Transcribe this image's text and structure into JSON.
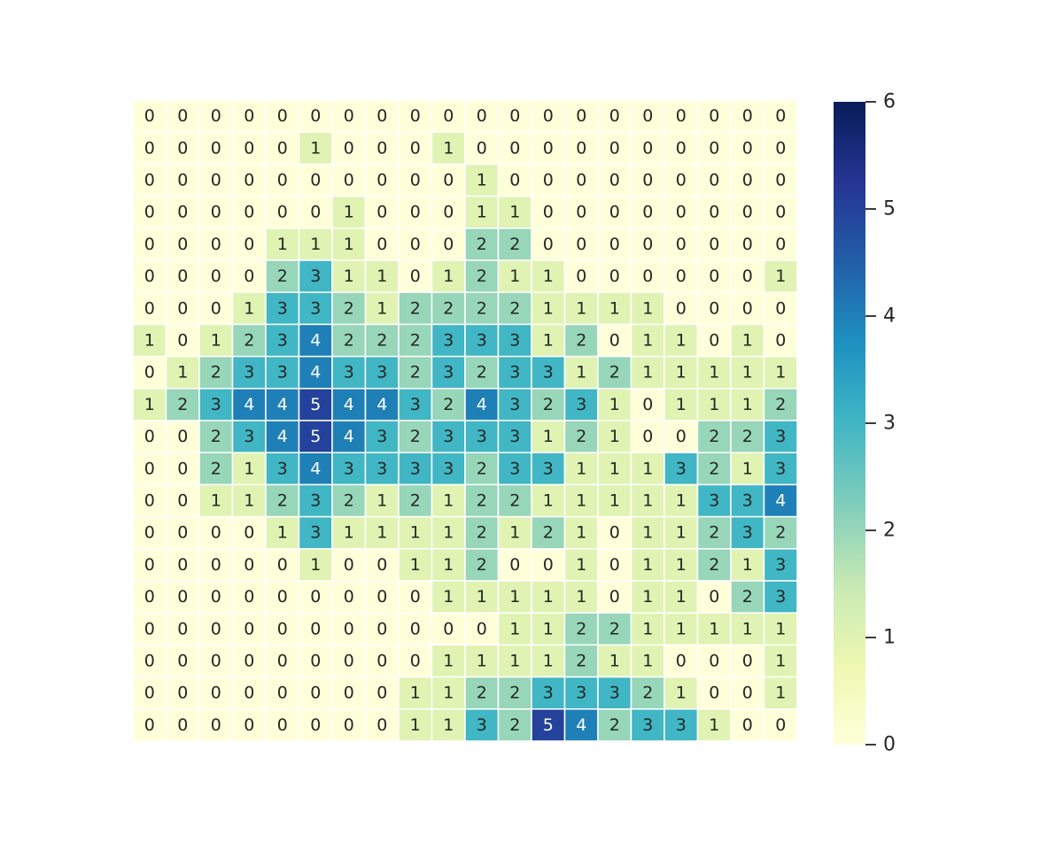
{
  "chart_data": {
    "type": "heatmap",
    "title": "",
    "xlabel": "",
    "ylabel": "",
    "colormap": "YlGnBu",
    "annotations": true,
    "grid": false,
    "legend": "colorbar-right",
    "vmin": 0,
    "vmax": 6,
    "colorbar_ticks": [
      0,
      1,
      2,
      3,
      4,
      5,
      6
    ],
    "colorbar_tick_labels": [
      "0",
      "1",
      "2",
      "3",
      "4",
      "5",
      "6"
    ],
    "matrix": [
      [
        0,
        0,
        0,
        0,
        0,
        0,
        0,
        0,
        0,
        0,
        0,
        0,
        0,
        0,
        0,
        0,
        0,
        0,
        0,
        0
      ],
      [
        0,
        0,
        0,
        0,
        0,
        1,
        0,
        0,
        0,
        1,
        0,
        0,
        0,
        0,
        0,
        0,
        0,
        0,
        0,
        0
      ],
      [
        0,
        0,
        0,
        0,
        0,
        0,
        0,
        0,
        0,
        0,
        1,
        0,
        0,
        0,
        0,
        0,
        0,
        0,
        0,
        0
      ],
      [
        0,
        0,
        0,
        0,
        0,
        0,
        1,
        0,
        0,
        0,
        1,
        1,
        0,
        0,
        0,
        0,
        0,
        0,
        0,
        0
      ],
      [
        0,
        0,
        0,
        0,
        1,
        1,
        1,
        0,
        0,
        0,
        2,
        2,
        0,
        0,
        0,
        0,
        0,
        0,
        0,
        0
      ],
      [
        0,
        0,
        0,
        0,
        2,
        3,
        1,
        1,
        0,
        1,
        2,
        1,
        1,
        0,
        0,
        0,
        0,
        0,
        0,
        1
      ],
      [
        0,
        0,
        0,
        1,
        3,
        3,
        2,
        1,
        2,
        2,
        2,
        2,
        1,
        1,
        1,
        1,
        0,
        0,
        0,
        0
      ],
      [
        1,
        0,
        1,
        2,
        3,
        4,
        2,
        2,
        2,
        3,
        3,
        3,
        1,
        2,
        0,
        1,
        1,
        0,
        1,
        0
      ],
      [
        0,
        1,
        2,
        3,
        3,
        4,
        3,
        3,
        2,
        3,
        2,
        3,
        3,
        1,
        2,
        1,
        1,
        1,
        1,
        1
      ],
      [
        1,
        2,
        3,
        4,
        4,
        5,
        4,
        4,
        3,
        2,
        4,
        3,
        2,
        3,
        1,
        0,
        1,
        1,
        1,
        2
      ],
      [
        0,
        0,
        2,
        3,
        4,
        5,
        4,
        3,
        2,
        3,
        3,
        3,
        1,
        2,
        1,
        0,
        0,
        2,
        2,
        3
      ],
      [
        0,
        0,
        2,
        1,
        3,
        4,
        3,
        3,
        3,
        3,
        2,
        3,
        3,
        1,
        1,
        1,
        3,
        2,
        1,
        3
      ],
      [
        0,
        0,
        1,
        1,
        2,
        3,
        2,
        1,
        2,
        1,
        2,
        2,
        1,
        1,
        1,
        1,
        1,
        3,
        3,
        4
      ],
      [
        0,
        0,
        0,
        0,
        1,
        3,
        1,
        1,
        1,
        1,
        2,
        1,
        2,
        1,
        0,
        1,
        1,
        2,
        3,
        2
      ],
      [
        0,
        0,
        0,
        0,
        0,
        1,
        0,
        0,
        1,
        1,
        2,
        0,
        0,
        1,
        0,
        1,
        1,
        2,
        1,
        3
      ],
      [
        0,
        0,
        0,
        0,
        0,
        0,
        0,
        0,
        0,
        1,
        1,
        1,
        1,
        1,
        0,
        1,
        1,
        0,
        2,
        3
      ],
      [
        0,
        0,
        0,
        0,
        0,
        0,
        0,
        0,
        0,
        0,
        0,
        1,
        1,
        2,
        2,
        1,
        1,
        1,
        1,
        1
      ],
      [
        0,
        0,
        0,
        0,
        0,
        0,
        0,
        0,
        0,
        1,
        1,
        1,
        1,
        2,
        1,
        1,
        0,
        0,
        0,
        1
      ],
      [
        0,
        0,
        0,
        0,
        0,
        0,
        0,
        0,
        1,
        1,
        2,
        2,
        3,
        3,
        3,
        2,
        1,
        0,
        0,
        1
      ],
      [
        0,
        0,
        0,
        0,
        0,
        0,
        0,
        0,
        1,
        1,
        3,
        2,
        5,
        4,
        2,
        3,
        3,
        1,
        0,
        0
      ]
    ]
  }
}
